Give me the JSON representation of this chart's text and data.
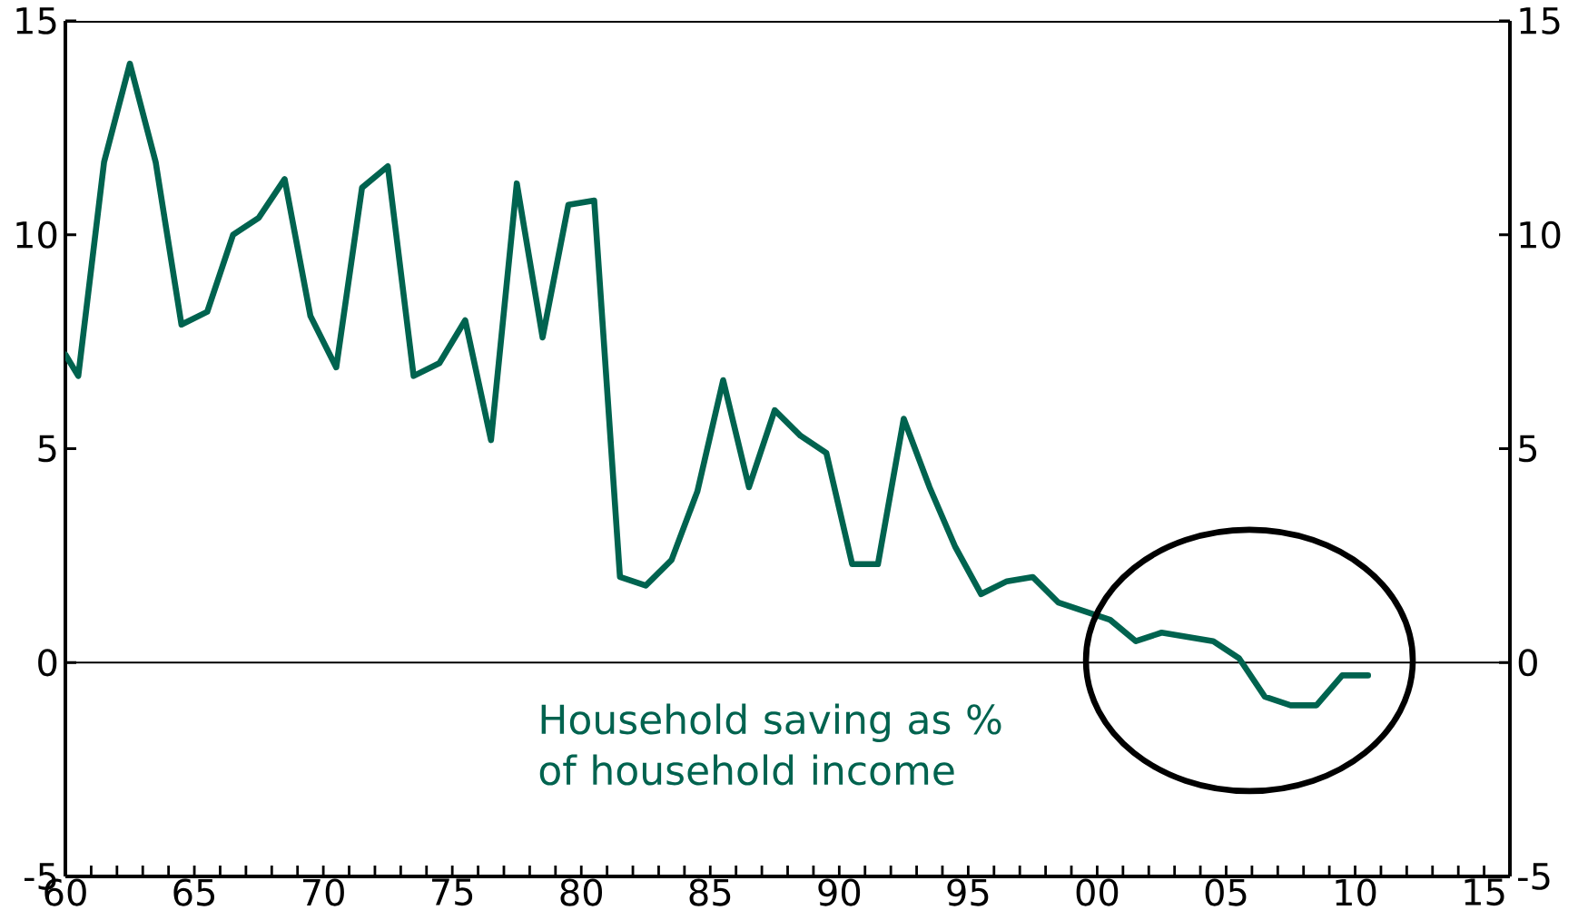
{
  "chart_data": {
    "type": "line",
    "x": [
      1960.0,
      1960.5,
      1961.5,
      1962.5,
      1963.5,
      1964.5,
      1965.5,
      1966.5,
      1967.5,
      1968.5,
      1969.5,
      1970.5,
      1971.5,
      1972.5,
      1973.5,
      1974.5,
      1975.5,
      1976.5,
      1977.5,
      1978.5,
      1979.5,
      1980.5,
      1981.5,
      1982.5,
      1983.5,
      1984.5,
      1985.5,
      1986.5,
      1987.5,
      1988.5,
      1989.5,
      1990.5,
      1991.5,
      1992.5,
      1993.5,
      1994.5,
      1995.5,
      1996.5,
      1997.5,
      1998.5,
      1999.5,
      2000.5,
      2001.5,
      2002.5,
      2003.5,
      2004.5,
      2005.5,
      2006.5,
      2007.5,
      2008.5,
      2009.5,
      2010.5
    ],
    "series": [
      {
        "color": "#00634f",
        "values": [
          7.2,
          6.7,
          11.7,
          14.0,
          11.7,
          7.9,
          8.2,
          10.0,
          10.4,
          11.3,
          8.1,
          6.9,
          11.1,
          11.6,
          6.7,
          7.0,
          8.0,
          5.2,
          11.2,
          7.6,
          10.7,
          10.8,
          2.0,
          1.8,
          2.4,
          4.0,
          6.6,
          4.1,
          5.9,
          5.3,
          4.9,
          2.3,
          2.3,
          5.7,
          4.1,
          2.7,
          1.6,
          1.9,
          2.0,
          1.4,
          1.2,
          1.0,
          0.5,
          0.7,
          0.6,
          0.5,
          0.1,
          -0.8,
          -1.0,
          -1.0,
          -0.3,
          -0.3
        ]
      }
    ],
    "xlim": [
      1960,
      2016
    ],
    "xticks": [
      {
        "value": 1960,
        "label": "60"
      },
      {
        "value": 1965,
        "label": "65"
      },
      {
        "value": 1970,
        "label": "70"
      },
      {
        "value": 1975,
        "label": "75"
      },
      {
        "value": 1980,
        "label": "80"
      },
      {
        "value": 1985,
        "label": "85"
      },
      {
        "value": 1990,
        "label": "90"
      },
      {
        "value": 1995,
        "label": "95"
      },
      {
        "value": 2000,
        "label": "00"
      },
      {
        "value": 2005,
        "label": "05"
      },
      {
        "value": 2010,
        "label": "10"
      },
      {
        "value": 2015,
        "label": "15"
      }
    ],
    "ylim": [
      -5,
      15
    ],
    "yticks": [
      -5,
      0,
      5,
      10,
      15
    ],
    "y2lim": [
      -5,
      15
    ],
    "y2ticks": [
      -5,
      0,
      5,
      10,
      15
    ],
    "ref_lines": [
      {
        "axis": "y",
        "value": 0,
        "color": "#000000"
      }
    ],
    "annotations": [
      "Household saving as % of household income"
    ]
  }
}
